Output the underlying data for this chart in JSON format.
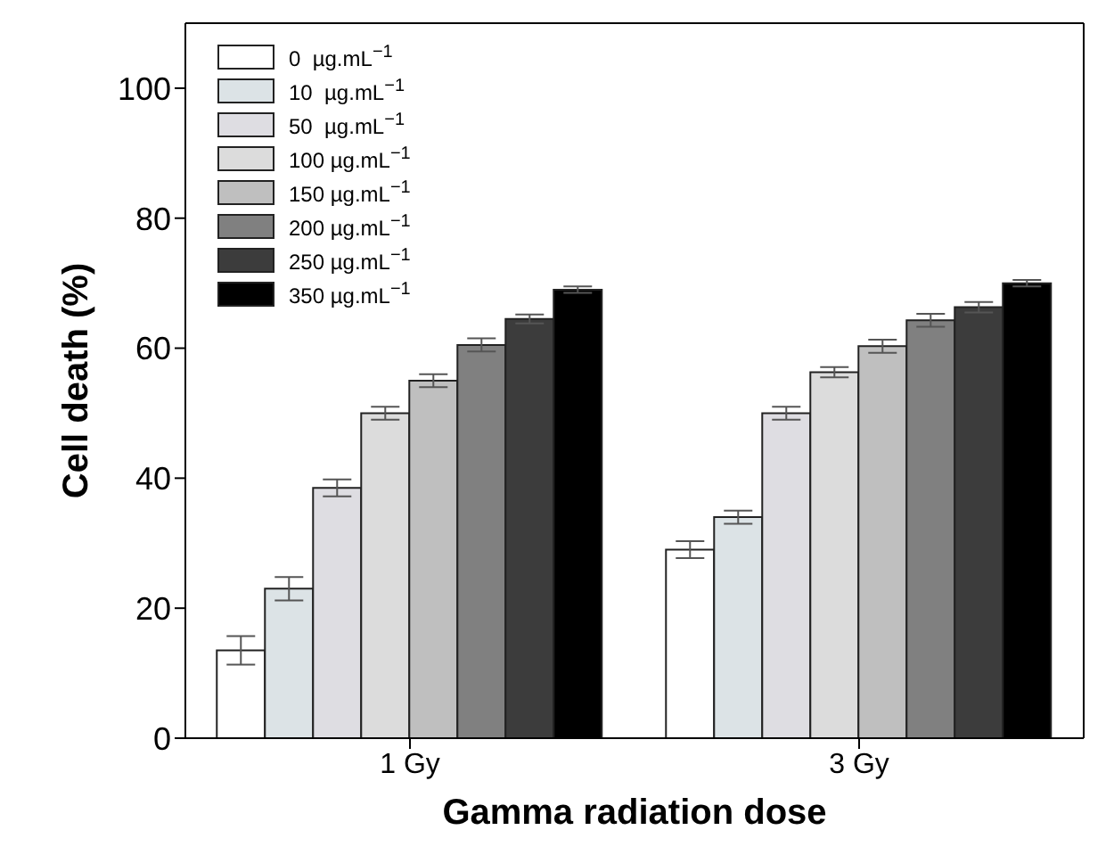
{
  "chart_data": {
    "type": "bar",
    "xlabel": "Gamma radiation dose",
    "ylabel": "Cell death (%)",
    "categories": [
      "1 Gy",
      "3 Gy"
    ],
    "series": [
      {
        "name": "0  µg.mL$^{−1}$",
        "color": "#ffffff",
        "values": [
          13.5,
          29
        ],
        "errors": [
          2.2,
          1.3
        ]
      },
      {
        "name": "10  µg.mL$^{−1}$",
        "color": "#dce3e6",
        "values": [
          23,
          34
        ],
        "errors": [
          1.8,
          1.0
        ]
      },
      {
        "name": "50  µg.mL$^{−1}$",
        "color": "#dedde2",
        "values": [
          38.5,
          50
        ],
        "errors": [
          1.3,
          1.0
        ]
      },
      {
        "name": "100 µg.mL$^{−1}$",
        "color": "#dcdcdc",
        "values": [
          50,
          56.3
        ],
        "errors": [
          1.0,
          0.8
        ]
      },
      {
        "name": "150 µg.mL$^{−1}$",
        "color": "#bfbfbf",
        "values": [
          55,
          60.3
        ],
        "errors": [
          1.0,
          1.0
        ]
      },
      {
        "name": "200 µg.mL$^{−1}$",
        "color": "#808080",
        "values": [
          60.5,
          64.3
        ],
        "errors": [
          1.0,
          1.0
        ]
      },
      {
        "name": "250 µg.mL$^{−1}$",
        "color": "#3c3c3c",
        "values": [
          64.5,
          66.3
        ],
        "errors": [
          0.7,
          0.8
        ]
      },
      {
        "name": "350 µg.mL$^{−1}$",
        "color": "#000000",
        "values": [
          69,
          70
        ],
        "errors": [
          0.5,
          0.5
        ]
      }
    ],
    "ylim": [
      0,
      110
    ],
    "yticks": [
      0,
      20,
      40,
      60,
      80,
      100
    ],
    "grid": false,
    "legend": "top left"
  }
}
